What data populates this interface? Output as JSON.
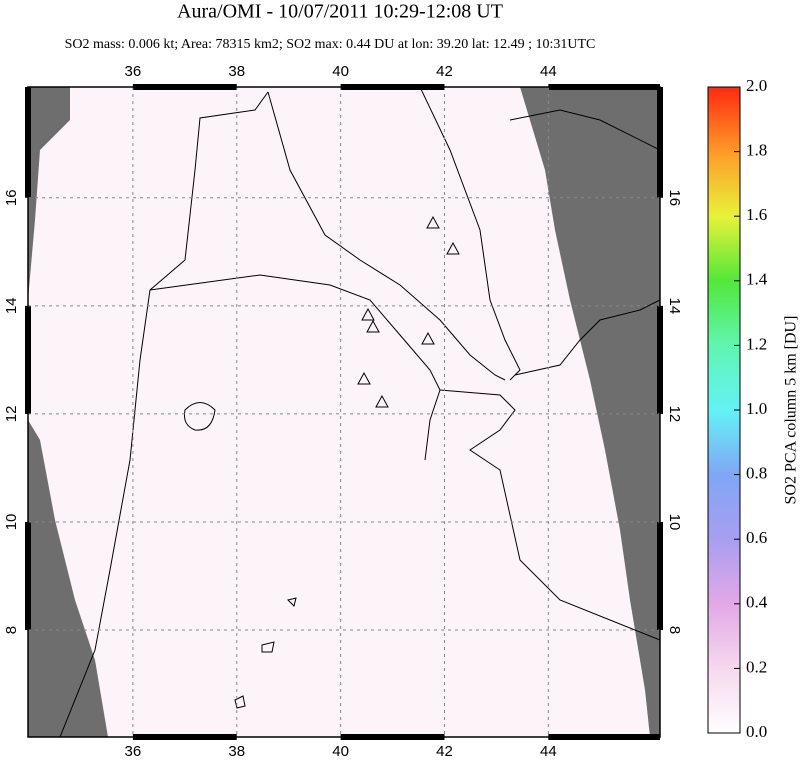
{
  "chart_data": {
    "type": "map",
    "title": "Aura/OMI - 10/07/2011 10:29-12:08 UT",
    "subtitle": "SO2 mass: 0.006 kt; Area: 78315 km2; SO2 max: 0.44 DU at lon: 39.20 lat: 12.49 ; 10:31UTC",
    "xlim": [
      33.98,
      46.15
    ],
    "ylim": [
      6.02,
      18.05
    ],
    "xticks": [
      36,
      38,
      40,
      42,
      44
    ],
    "yticks": [
      8,
      10,
      12,
      14,
      16
    ],
    "grid": true,
    "colorbar": {
      "label": "SO2 PCA column 5 km [DU]",
      "lim": [
        0,
        2
      ],
      "ticks": [
        {
          "value": 0,
          "label": "0.0"
        },
        {
          "value": 0.2,
          "label": "0.2"
        },
        {
          "value": 0.4,
          "label": "0.4"
        },
        {
          "value": 0.6,
          "label": "0.6"
        },
        {
          "value": 0.8,
          "label": "0.8"
        },
        {
          "value": 1,
          "label": "1.0"
        },
        {
          "value": 1.2,
          "label": "1.2"
        },
        {
          "value": 1.4,
          "label": "1.4"
        },
        {
          "value": 1.6,
          "label": "1.6"
        },
        {
          "value": 1.8,
          "label": "1.8"
        },
        {
          "value": 2,
          "label": "2.0"
        }
      ]
    }
  }
}
